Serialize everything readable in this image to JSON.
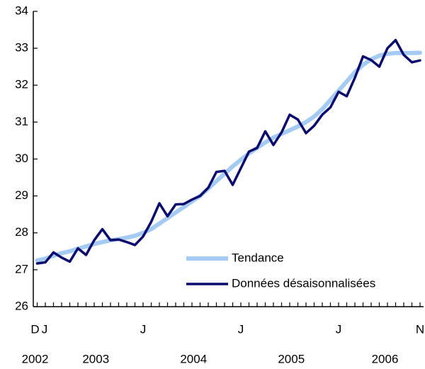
{
  "chart_data": {
    "type": "line",
    "categories": [
      "D",
      "J",
      null,
      null,
      null,
      null,
      null,
      null,
      null,
      null,
      null,
      null,
      null,
      "J",
      null,
      null,
      null,
      null,
      null,
      null,
      null,
      null,
      null,
      null,
      null,
      "J",
      null,
      null,
      null,
      null,
      null,
      null,
      null,
      null,
      null,
      null,
      null,
      "J",
      null,
      null,
      null,
      null,
      null,
      null,
      null,
      null,
      null,
      "N"
    ],
    "year_labels": [
      "2002",
      "2003",
      "2004",
      "2005",
      "2006"
    ],
    "series": [
      {
        "name": "Tendance",
        "color": "#a6cbf2",
        "values": [
          27.25,
          27.3,
          27.38,
          27.45,
          27.5,
          27.57,
          27.63,
          27.7,
          27.75,
          27.8,
          27.83,
          27.87,
          27.92,
          28.0,
          28.1,
          28.25,
          28.4,
          28.55,
          28.7,
          28.85,
          29.0,
          29.2,
          29.4,
          29.6,
          29.8,
          29.98,
          30.15,
          30.3,
          30.45,
          30.58,
          30.68,
          30.78,
          30.88,
          31.0,
          31.15,
          31.35,
          31.6,
          31.85,
          32.1,
          32.35,
          32.55,
          32.7,
          32.8,
          32.85,
          32.87,
          32.87,
          32.87,
          32.88
        ]
      },
      {
        "name": "Données désaisonnalisées",
        "color": "#0b0b6e",
        "values": [
          27.17,
          27.2,
          27.47,
          27.33,
          27.22,
          27.58,
          27.4,
          27.8,
          28.1,
          27.8,
          27.82,
          27.75,
          27.67,
          27.9,
          28.3,
          28.8,
          28.45,
          28.77,
          28.78,
          28.9,
          29.0,
          29.22,
          29.65,
          29.68,
          29.3,
          29.75,
          30.2,
          30.3,
          30.75,
          30.38,
          30.72,
          31.2,
          31.07,
          30.7,
          30.9,
          31.2,
          31.4,
          31.82,
          31.7,
          32.2,
          32.78,
          32.68,
          32.5,
          33.0,
          33.22,
          32.82,
          32.62,
          32.67
        ]
      }
    ],
    "ylim": [
      26,
      34
    ],
    "yticks": [
      26,
      27,
      28,
      29,
      30,
      31,
      32,
      33,
      34
    ]
  }
}
